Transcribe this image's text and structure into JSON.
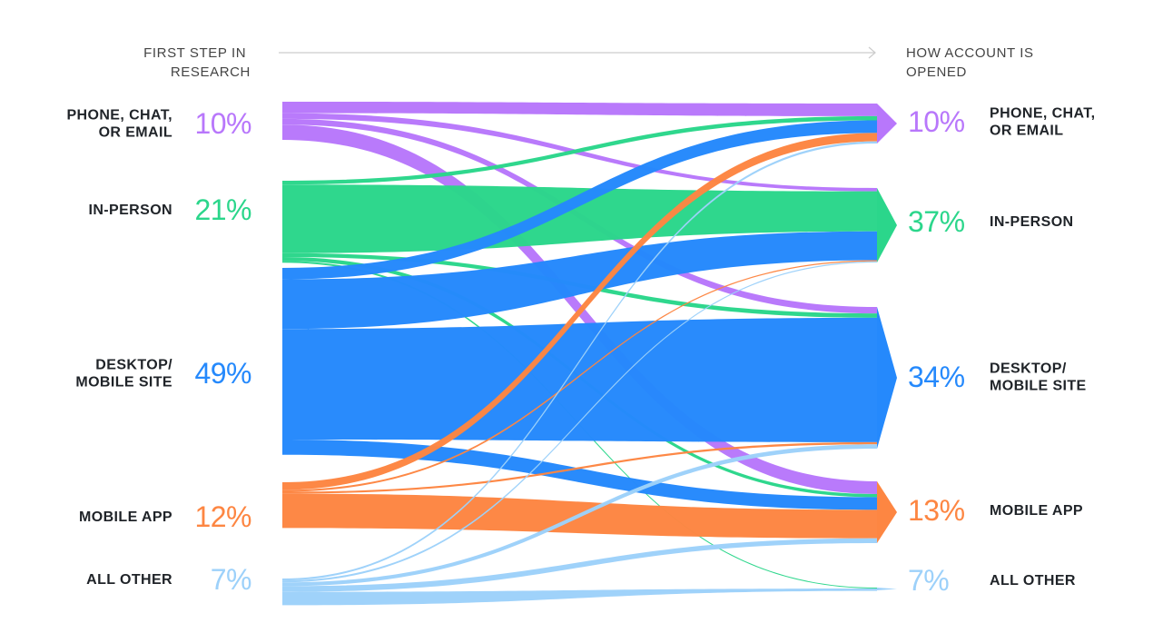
{
  "headers": {
    "left": [
      "FIRST STEP IN",
      "RESEARCH"
    ],
    "right": [
      "HOW ACCOUNT IS",
      "OPENED"
    ]
  },
  "colors": {
    "phone": "#b877fb",
    "inperson": "#2bd68b",
    "desktop": "#2589fc",
    "app": "#fd8642",
    "other": "#9dd1fa",
    "text": "#1f2328",
    "header": "#444444",
    "arrow": "#cccccc"
  },
  "chart_data": {
    "type": "sankey",
    "left_nodes": [
      {
        "id": "phone",
        "label": [
          "PHONE, CHAT,",
          "OR EMAIL"
        ],
        "value": 10,
        "pct": "10%"
      },
      {
        "id": "inperson",
        "label": [
          "IN-PERSON"
        ],
        "value": 21,
        "pct": "21%"
      },
      {
        "id": "desktop",
        "label": [
          "DESKTOP/",
          "MOBILE SITE"
        ],
        "value": 49,
        "pct": "49%"
      },
      {
        "id": "app",
        "label": [
          "MOBILE APP"
        ],
        "value": 12,
        "pct": "12%"
      },
      {
        "id": "other",
        "label": [
          "ALL OTHER"
        ],
        "value": 7,
        "pct": "7%"
      }
    ],
    "right_nodes": [
      {
        "id": "phone",
        "label": [
          "PHONE, CHAT,",
          "OR EMAIL"
        ],
        "value": 10,
        "pct": "10%"
      },
      {
        "id": "inperson",
        "label": [
          "IN-PERSON"
        ],
        "value": 37,
        "pct": "37%"
      },
      {
        "id": "desktop",
        "label": [
          "DESKTOP/",
          "MOBILE SITE"
        ],
        "value": 34,
        "pct": "34%"
      },
      {
        "id": "app",
        "label": [
          "MOBILE APP"
        ],
        "value": 13,
        "pct": "13%"
      },
      {
        "id": "other",
        "label": [
          "ALL OTHER"
        ],
        "value": 7,
        "pct": "7%"
      }
    ],
    "flows": [
      {
        "source": "phone",
        "target": "phone",
        "value": 3
      },
      {
        "source": "phone",
        "target": "inperson",
        "value": 1.5
      },
      {
        "source": "phone",
        "target": "desktop",
        "value": 1.5
      },
      {
        "source": "phone",
        "target": "app",
        "value": 4
      },
      {
        "source": "inperson",
        "target": "phone",
        "value": 1
      },
      {
        "source": "inperson",
        "target": "inperson",
        "value": 18
      },
      {
        "source": "inperson",
        "target": "desktop",
        "value": 1
      },
      {
        "source": "inperson",
        "target": "app",
        "value": 1
      },
      {
        "source": "inperson",
        "target": "other",
        "value": 0.5
      },
      {
        "source": "desktop",
        "target": "phone",
        "value": 3
      },
      {
        "source": "desktop",
        "target": "inperson",
        "value": 13
      },
      {
        "source": "desktop",
        "target": "desktop",
        "value": 29
      },
      {
        "source": "desktop",
        "target": "app",
        "value": 4
      },
      {
        "source": "app",
        "target": "phone",
        "value": 2
      },
      {
        "source": "app",
        "target": "inperson",
        "value": 0.5
      },
      {
        "source": "app",
        "target": "desktop",
        "value": 0.5
      },
      {
        "source": "app",
        "target": "app",
        "value": 9
      },
      {
        "source": "other",
        "target": "phone",
        "value": 0.5
      },
      {
        "source": "other",
        "target": "inperson",
        "value": 0.5
      },
      {
        "source": "other",
        "target": "desktop",
        "value": 1
      },
      {
        "source": "other",
        "target": "app",
        "value": 1.5
      },
      {
        "source": "other",
        "target": "other",
        "value": 3.5
      }
    ]
  }
}
